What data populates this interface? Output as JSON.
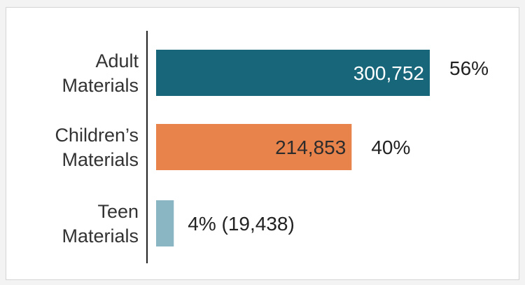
{
  "chart_data": {
    "type": "bar",
    "orientation": "horizontal",
    "title": "",
    "xlabel": "",
    "ylabel": "",
    "categories": [
      [
        "Adult",
        "Materials"
      ],
      [
        "Children’s",
        "Materials"
      ],
      [
        "Teen",
        "Materials"
      ]
    ],
    "values": [
      300752,
      214853,
      19438
    ],
    "value_labels": [
      "300,752",
      "214,853",
      ""
    ],
    "percent_labels": [
      "56%",
      "40%",
      "4% (19,438)"
    ],
    "colors": [
      "#17667a",
      "#e8834c",
      "#8ab6c3"
    ],
    "xlim": [
      0,
      300752
    ],
    "grid": false,
    "legend": "none"
  }
}
